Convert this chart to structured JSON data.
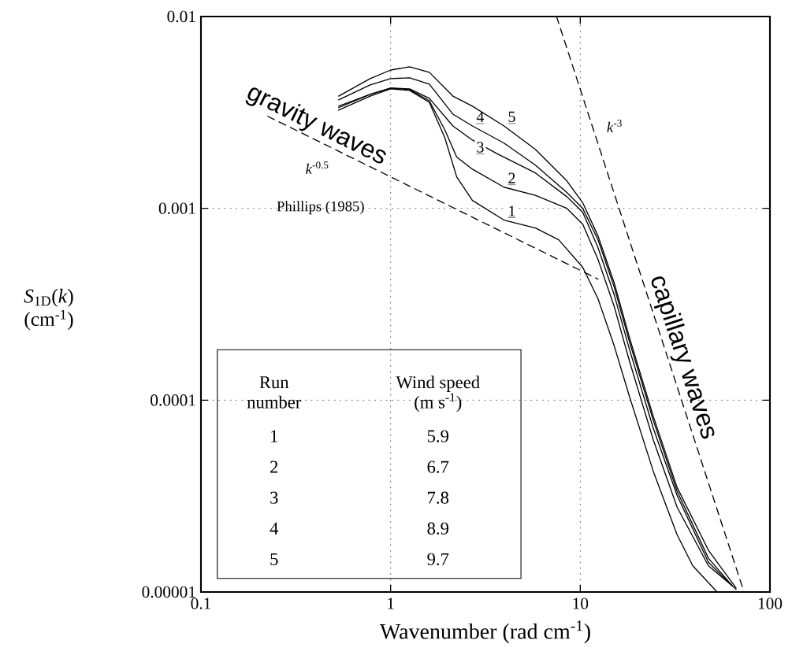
{
  "chart_data": {
    "type": "line",
    "xlabel": "Wavenumber (rad cm$^{-1}$)",
    "ylabel": "*S*$_{1D}$(*k*) (cm$^{-1}$)",
    "xlim": [
      0.1,
      100
    ],
    "ylim": [
      1e-05,
      0.01
    ],
    "xticks": [
      0.1,
      1,
      10,
      100
    ],
    "yticks": [
      {
        "value": 1e-05,
        "label": "0.00001"
      },
      {
        "value": 0.0001,
        "label": "0.0001"
      },
      {
        "value": 0.001,
        "label": "0.001"
      },
      {
        "value": 0.01,
        "label": "0.01"
      }
    ],
    "log": "xy",
    "grid": true,
    "marker": "none",
    "series": [
      {
        "name": "1",
        "color": "#000000",
        "line_style": "solid",
        "x": [
          0.532,
          0.78,
          1.0,
          1.26,
          1.6,
          1.93,
          2.23,
          2.7,
          3.96,
          5.8,
          7.7,
          10.3,
          12.4,
          15.1,
          18.2,
          24.3,
          32.4,
          39.2,
          52.2
        ],
        "values": [
          0.00325,
          0.00385,
          0.0042,
          0.00412,
          0.00357,
          0.00234,
          0.00146,
          0.0011,
          0.000869,
          0.00079,
          0.000686,
          0.000493,
          0.000338,
          0.000192,
          0.000104,
          4.24e-05,
          1.99e-05,
          1.37e-05,
          1.01e-05
        ]
      },
      {
        "name": "2",
        "color": "#000000",
        "line_style": "solid",
        "x": [
          0.532,
          0.78,
          1.0,
          1.26,
          1.6,
          1.93,
          2.23,
          2.7,
          3.96,
          5.8,
          8.5,
          10.3,
          12.4,
          15.1,
          18.2,
          24.3,
          32.4,
          47.4,
          63.2
        ],
        "values": [
          0.00335,
          0.00393,
          0.00424,
          0.00416,
          0.00364,
          0.00257,
          0.00185,
          0.0016,
          0.00129,
          0.00117,
          0.001,
          0.000828,
          0.000542,
          0.000308,
          0.000159,
          6.18e-05,
          2.77e-05,
          1.37e-05,
          1.08e-05
        ]
      },
      {
        "name": "3",
        "color": "#000000",
        "line_style": "solid",
        "x": [
          0.532,
          0.78,
          1.0,
          1.26,
          1.6,
          2.13,
          2.7,
          3.6,
          5.8,
          8.5,
          10.3,
          12.4,
          15.1,
          18.2,
          24.3,
          32.4,
          47.4,
          66.3
        ],
        "values": [
          0.00341,
          0.00393,
          0.00424,
          0.0042,
          0.00375,
          0.00269,
          0.00227,
          0.00194,
          0.00153,
          0.00115,
          0.000955,
          0.000624,
          0.000354,
          0.000183,
          7.11e-05,
          3.19e-05,
          1.43e-05,
          1.03e-05
        ]
      },
      {
        "name": "4",
        "color": "#000000",
        "line_style": "solid",
        "x": [
          0.532,
          0.78,
          1.0,
          1.26,
          1.6,
          2.13,
          2.7,
          3.96,
          5.8,
          8.5,
          10.3,
          12.4,
          15.1,
          18.2,
          24.3,
          32.4,
          47.4,
          63.2
        ],
        "values": [
          0.00368,
          0.0044,
          0.00475,
          0.00479,
          0.00444,
          0.0031,
          0.00269,
          0.00219,
          0.00168,
          0.00121,
          0.001,
          0.000686,
          0.000389,
          0.000201,
          7.82e-05,
          3.35e-05,
          1.5e-05,
          1.08e-05
        ]
      },
      {
        "name": "5",
        "color": "#000000",
        "line_style": "solid",
        "x": [
          0.532,
          0.78,
          1.0,
          1.26,
          1.6,
          2.13,
          2.7,
          3.96,
          5.8,
          8.5,
          10.3,
          12.4,
          15.1,
          18.2,
          24.3,
          32.4,
          47.4,
          66.3
        ],
        "values": [
          0.00385,
          0.00475,
          0.00526,
          0.00547,
          0.00512,
          0.00385,
          0.00341,
          0.00269,
          0.00203,
          0.00139,
          0.00107,
          0.000719,
          0.000408,
          0.000211,
          8.2e-05,
          3.51e-05,
          1.65e-05,
          1.05e-05
        ]
      },
      {
        "name": "*k*$^{-0.5}$",
        "color": "#000000",
        "line_style": "dashed",
        "x": [
          0.225,
          12.4
        ],
        "values": [
          0.00302,
          0.000428
        ]
      },
      {
        "name": "*k*$^{-3}$",
        "color": "#000000",
        "line_style": "dashed",
        "x": [
          7.5,
          73
        ],
        "values": [
          0.01,
          1e-05
        ]
      }
    ],
    "annotations": [
      "Phillips (1985)",
      "gravity waves",
      "capillary waves",
      "Run number",
      "Wind speed (m s$^{-1}$)",
      "5.9",
      "6.7",
      "7.8",
      "8.9",
      "9.7"
    ]
  }
}
